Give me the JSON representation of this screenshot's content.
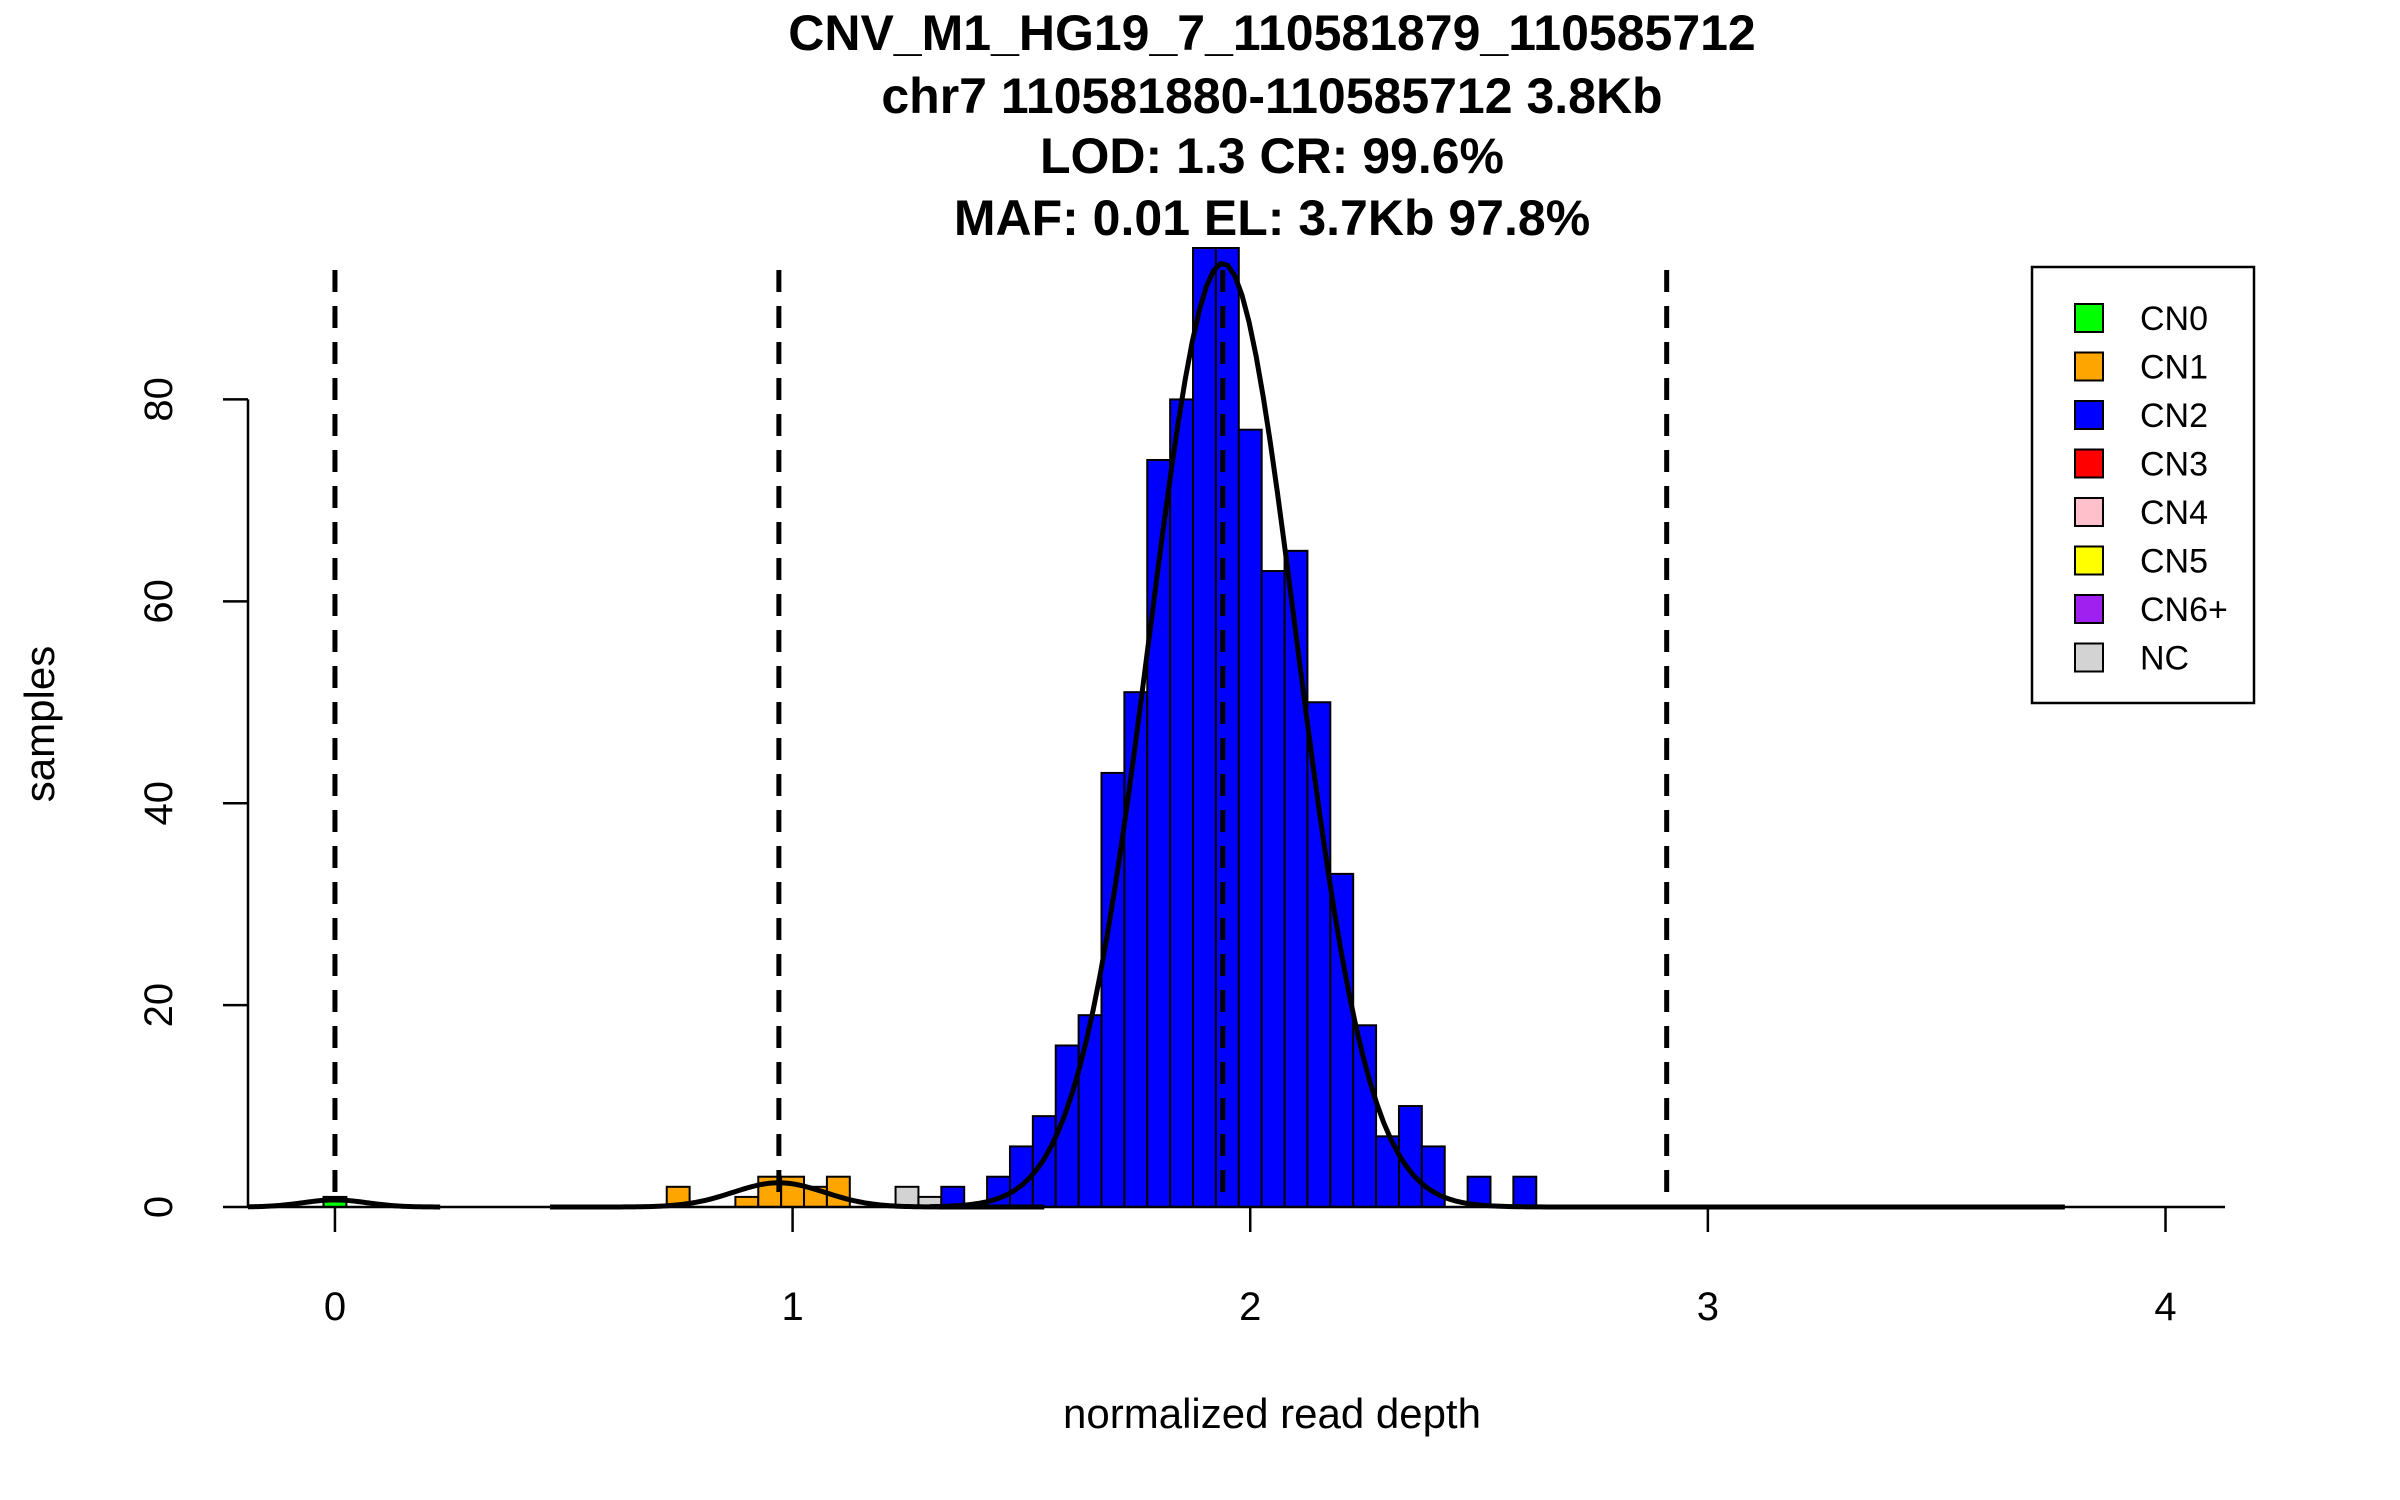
{
  "chart_data": {
    "type": "bar",
    "title_lines": [
      "CNV_M1_HG19_7_110581879_110585712",
      "chr7 110581880-110585712 3.8Kb",
      "LOD: 1.3 CR: 99.6%",
      "MAF: 0.01 EL: 3.7Kb 97.8%"
    ],
    "xlabel": "normalized read depth",
    "ylabel": "samples",
    "xlim": [
      -0.19,
      4.13
    ],
    "ylim": [
      0,
      95
    ],
    "xticks": [
      0,
      1,
      2,
      3,
      4
    ],
    "yticks": [
      0,
      20,
      40,
      60,
      80
    ],
    "bin_width": 0.05,
    "colors": {
      "CN0": "#00ff00",
      "CN1": "#ffa500",
      "CN2": "#0000ff",
      "CN3": "#ff0000",
      "CN4": "#ffc0cb",
      "CN5": "#ffff00",
      "CN6+": "#a020f0",
      "NC": "#d3d3d3"
    },
    "bars": [
      {
        "x": 0.0,
        "value": 1,
        "class": "CN0"
      },
      {
        "x": 0.75,
        "value": 2,
        "class": "CN1"
      },
      {
        "x": 0.9,
        "value": 1,
        "class": "CN1"
      },
      {
        "x": 0.95,
        "value": 3,
        "class": "CN1"
      },
      {
        "x": 1.0,
        "value": 3,
        "class": "CN1"
      },
      {
        "x": 1.05,
        "value": 2,
        "class": "CN1"
      },
      {
        "x": 1.1,
        "value": 3,
        "class": "CN1"
      },
      {
        "x": 1.25,
        "value": 2,
        "class": "NC"
      },
      {
        "x": 1.3,
        "value": 1,
        "class": "NC"
      },
      {
        "x": 1.35,
        "value": 2,
        "class": "CN2"
      },
      {
        "x": 1.45,
        "value": 3,
        "class": "CN2"
      },
      {
        "x": 1.5,
        "value": 6,
        "class": "CN2"
      },
      {
        "x": 1.55,
        "value": 9,
        "class": "CN2"
      },
      {
        "x": 1.6,
        "value": 16,
        "class": "CN2"
      },
      {
        "x": 1.65,
        "value": 19,
        "class": "CN2"
      },
      {
        "x": 1.7,
        "value": 43,
        "class": "CN2"
      },
      {
        "x": 1.75,
        "value": 51,
        "class": "CN2"
      },
      {
        "x": 1.8,
        "value": 74,
        "class": "CN2"
      },
      {
        "x": 1.85,
        "value": 80,
        "class": "CN2"
      },
      {
        "x": 1.9,
        "value": 95,
        "class": "CN2"
      },
      {
        "x": 1.95,
        "value": 95,
        "class": "CN2"
      },
      {
        "x": 2.0,
        "value": 77,
        "class": "CN2"
      },
      {
        "x": 2.05,
        "value": 63,
        "class": "CN2"
      },
      {
        "x": 2.1,
        "value": 65,
        "class": "CN2"
      },
      {
        "x": 2.15,
        "value": 50,
        "class": "CN2"
      },
      {
        "x": 2.2,
        "value": 33,
        "class": "CN2"
      },
      {
        "x": 2.25,
        "value": 18,
        "class": "CN2"
      },
      {
        "x": 2.3,
        "value": 7,
        "class": "CN2"
      },
      {
        "x": 2.35,
        "value": 10,
        "class": "CN2"
      },
      {
        "x": 2.4,
        "value": 6,
        "class": "CN2"
      },
      {
        "x": 2.5,
        "value": 3,
        "class": "CN2"
      },
      {
        "x": 2.6,
        "value": 3,
        "class": "CN2"
      }
    ],
    "dashed_lines_x": [
      0.0,
      0.97,
      1.94,
      2.91
    ],
    "density_curves": [
      {
        "mean": 0.0,
        "sd": 0.07,
        "peak": 0.7,
        "from": -0.19,
        "to": 0.23
      },
      {
        "mean": 0.97,
        "sd": 0.1,
        "peak": 2.4,
        "from": 0.47,
        "to": 1.55
      },
      {
        "mean": 1.94,
        "sd": 0.16,
        "peak": 93.5,
        "from": 1.3,
        "to": 3.78
      }
    ],
    "legend": {
      "position": "top-right",
      "entries": [
        "CN0",
        "CN1",
        "CN2",
        "CN3",
        "CN4",
        "CN5",
        "CN6+",
        "NC"
      ]
    }
  }
}
